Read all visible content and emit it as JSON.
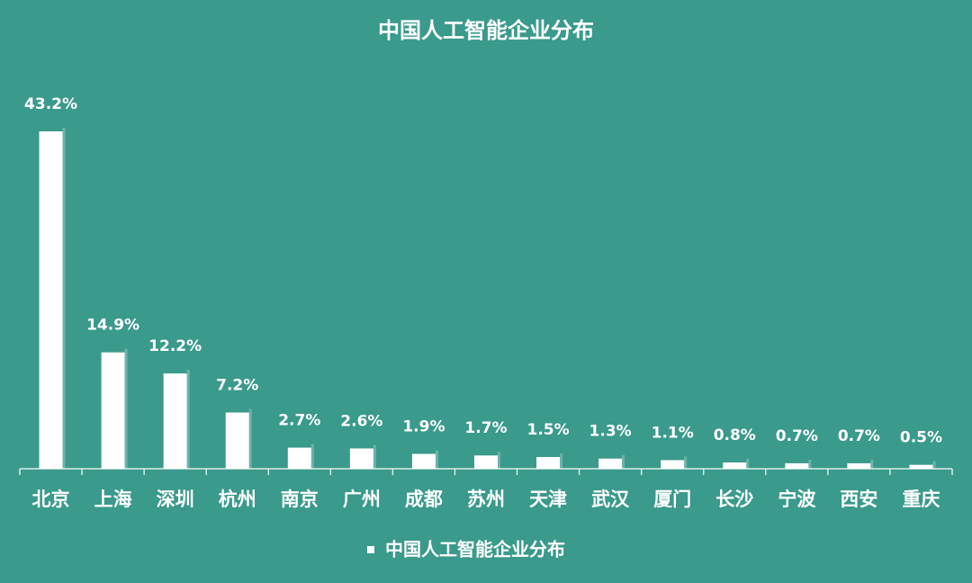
{
  "chart_data": {
    "type": "bar",
    "title": "中国人工智能企业分布",
    "categories": [
      "北京",
      "上海",
      "深圳",
      "杭州",
      "南京",
      "广州",
      "成都",
      "苏州",
      "天津",
      "武汉",
      "厦门",
      "长沙",
      "宁波",
      "西安",
      "重庆"
    ],
    "series": [
      {
        "name": "中国人工智能企业分布",
        "color": "#ffffff",
        "values": [
          43.2,
          14.9,
          12.2,
          7.2,
          2.7,
          2.6,
          1.9,
          1.7,
          1.5,
          1.3,
          1.1,
          0.8,
          0.7,
          0.7,
          0.5
        ],
        "value_labels": [
          "43.2%",
          "14.9%",
          "12.2%",
          "7.2%",
          "2.7%",
          "2.6%",
          "1.9%",
          "1.7%",
          "1.5%",
          "1.3%",
          "1.1%",
          "0.8%",
          "0.7%",
          "0.7%",
          "0.5%"
        ]
      }
    ],
    "background": "#3a9a8c",
    "legend": "bottom"
  }
}
